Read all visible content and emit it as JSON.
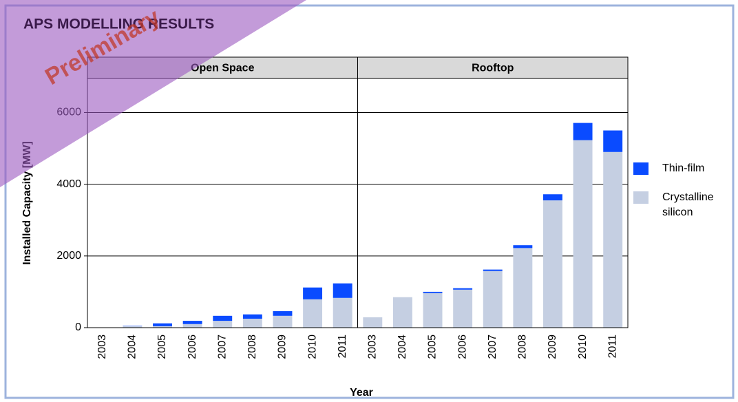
{
  "header": {
    "title": "APS MODELLING RESULTS",
    "watermark": "Preliminary"
  },
  "chart_data": {
    "type": "bar",
    "stacked": true,
    "panels": [
      "Open Space",
      "Rooftop"
    ],
    "categories": [
      "2003",
      "2004",
      "2005",
      "2006",
      "2007",
      "2008",
      "2009",
      "2010",
      "2011"
    ],
    "series": [
      {
        "name": "Crystalline silicon",
        "color": "#c5cfe2",
        "values": [
          [
            5,
            40,
            40,
            100,
            190,
            250,
            330,
            790,
            830
          ],
          [
            290,
            850,
            965,
            1060,
            1580,
            2220,
            3550,
            5230,
            4900
          ]
        ]
      },
      {
        "name": "Thin-film",
        "color": "#0a4bff",
        "values": [
          [
            0,
            10,
            80,
            90,
            140,
            120,
            130,
            330,
            405
          ],
          [
            0,
            0,
            35,
            40,
            40,
            80,
            170,
            480,
            600
          ]
        ]
      }
    ],
    "y_label": "Installed Capacity [MW]",
    "x_label": "Year",
    "ylim": [
      0,
      6950
    ],
    "yticks": [
      0,
      2000,
      4000,
      6000
    ],
    "grid": true
  }
}
